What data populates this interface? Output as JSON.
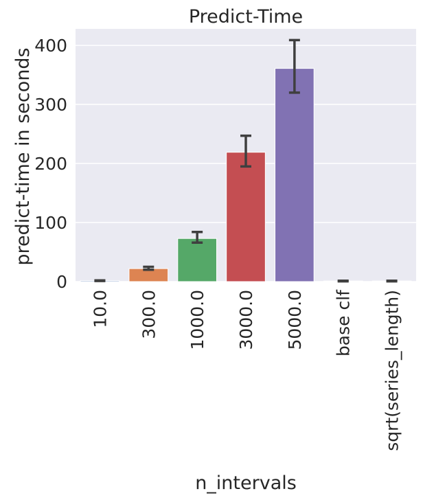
{
  "chart_data": {
    "type": "bar",
    "title": "Predict-Time",
    "xlabel": "n_intervals",
    "ylabel": "predict-time in seconds",
    "categories": [
      "10.0",
      "300.0",
      "1000.0",
      "3000.0",
      "5000.0",
      "base clf",
      "sqrt(series_length)"
    ],
    "values": [
      1.5,
      22,
      73,
      219,
      361,
      1,
      1
    ],
    "error_low": [
      1.0,
      20,
      66,
      195,
      320,
      0.5,
      0.5
    ],
    "error_high": [
      2.0,
      25,
      84,
      247,
      409,
      1.5,
      1.5
    ],
    "colors": [
      "#4c72b0",
      "#dd8452",
      "#55a868",
      "#c44e52",
      "#8172b3",
      "#937860",
      "#da8bc3"
    ],
    "ylim": [
      0,
      428
    ],
    "yticks": [
      0,
      100,
      200,
      300,
      400
    ],
    "grid": true,
    "background": "#eaeaf2",
    "errorbar_color": "#3f3f3f"
  }
}
